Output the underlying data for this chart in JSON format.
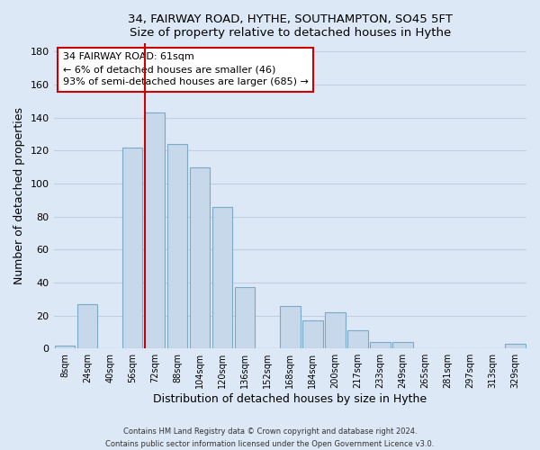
{
  "title1": "34, FAIRWAY ROAD, HYTHE, SOUTHAMPTON, SO45 5FT",
  "title2": "Size of property relative to detached houses in Hythe",
  "xlabel": "Distribution of detached houses by size in Hythe",
  "ylabel": "Number of detached properties",
  "bar_labels": [
    "8sqm",
    "24sqm",
    "40sqm",
    "56sqm",
    "72sqm",
    "88sqm",
    "104sqm",
    "120sqm",
    "136sqm",
    "152sqm",
    "168sqm",
    "184sqm",
    "200sqm",
    "217sqm",
    "233sqm",
    "249sqm",
    "265sqm",
    "281sqm",
    "297sqm",
    "313sqm",
    "329sqm"
  ],
  "bar_values": [
    2,
    27,
    0,
    122,
    143,
    124,
    110,
    86,
    37,
    0,
    26,
    17,
    22,
    11,
    4,
    4,
    0,
    0,
    0,
    0,
    3
  ],
  "bar_color": "#c8d8eb",
  "bar_edge_color": "#7aaac8",
  "highlight_line_color": "#cc0000",
  "annotation_text": "34 FAIRWAY ROAD: 61sqm\n← 6% of detached houses are smaller (46)\n93% of semi-detached houses are larger (685) →",
  "annotation_box_color": "#ffffff",
  "annotation_box_edge": "#cc0000",
  "ylim": [
    0,
    185
  ],
  "yticks": [
    0,
    20,
    40,
    60,
    80,
    100,
    120,
    140,
    160,
    180
  ],
  "footer1": "Contains HM Land Registry data © Crown copyright and database right 2024.",
  "footer2": "Contains public sector information licensed under the Open Government Licence v3.0.",
  "bg_color": "#dce8f5",
  "plot_bg_color": "#dce8f5",
  "grid_color": "#c0d0e0"
}
